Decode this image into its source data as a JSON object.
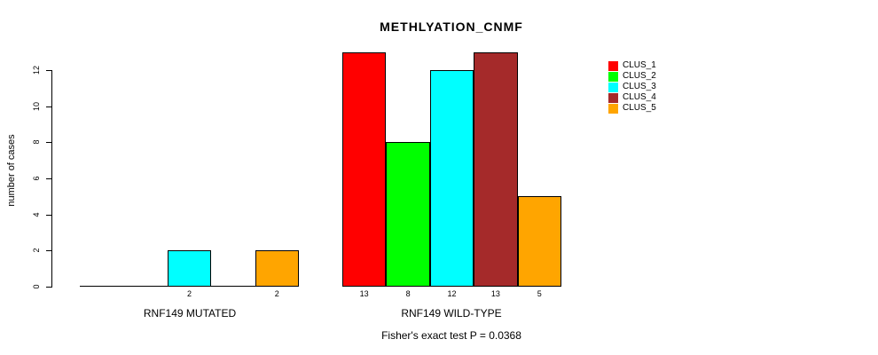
{
  "chart_data": {
    "type": "bar",
    "title": "METHLYATION_CNMF",
    "ylabel": "number of cases",
    "xlabel": "",
    "ylim": [
      0,
      13
    ],
    "yticks": [
      0,
      2,
      4,
      6,
      8,
      10,
      12
    ],
    "grid": false,
    "legend_position": "right-outside",
    "legend": [
      {
        "label": "CLUS_1",
        "color": "#FF0000"
      },
      {
        "label": "CLUS_2",
        "color": "#00FF00"
      },
      {
        "label": "CLUS_3",
        "color": "#00FFFF"
      },
      {
        "label": "CLUS_4",
        "color": "#A52A2A"
      },
      {
        "label": "CLUS_5",
        "color": "#FFA500"
      }
    ],
    "groups": [
      {
        "label": "RNF149 MUTATED",
        "values": [
          0,
          0,
          2,
          0,
          2
        ],
        "bar_labels": [
          "",
          "",
          "2",
          "",
          "2"
        ]
      },
      {
        "label": "RNF149 WILD-TYPE",
        "values": [
          13,
          8,
          12,
          13,
          5
        ],
        "bar_labels": [
          "13",
          "8",
          "12",
          "13",
          "5"
        ]
      }
    ],
    "footnote": "Fisher's exact test P = 0.0368"
  }
}
